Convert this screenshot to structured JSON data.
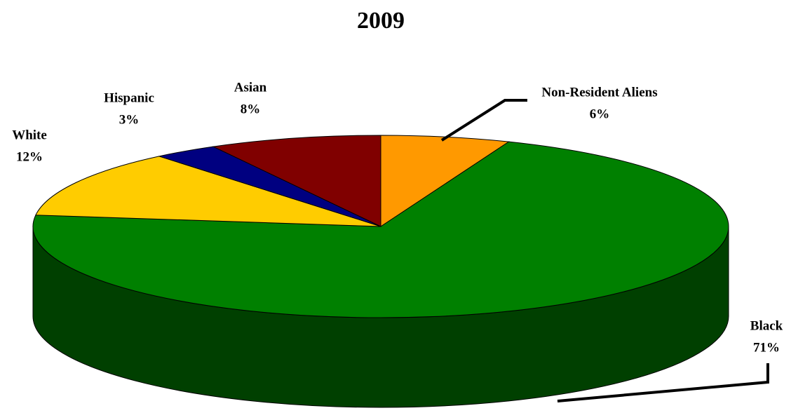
{
  "chart_data": {
    "type": "pie",
    "title": "2009",
    "categories": [
      "Non-Resident Aliens",
      "Black",
      "White",
      "Hispanic",
      "Asian"
    ],
    "values": [
      6,
      71,
      12,
      3,
      8
    ],
    "value_labels": [
      "6%",
      "71%",
      "12%",
      "3%",
      "8%"
    ],
    "colors": [
      "#FF9900",
      "#008000",
      "#FFCC00",
      "#000080",
      "#800000"
    ]
  }
}
